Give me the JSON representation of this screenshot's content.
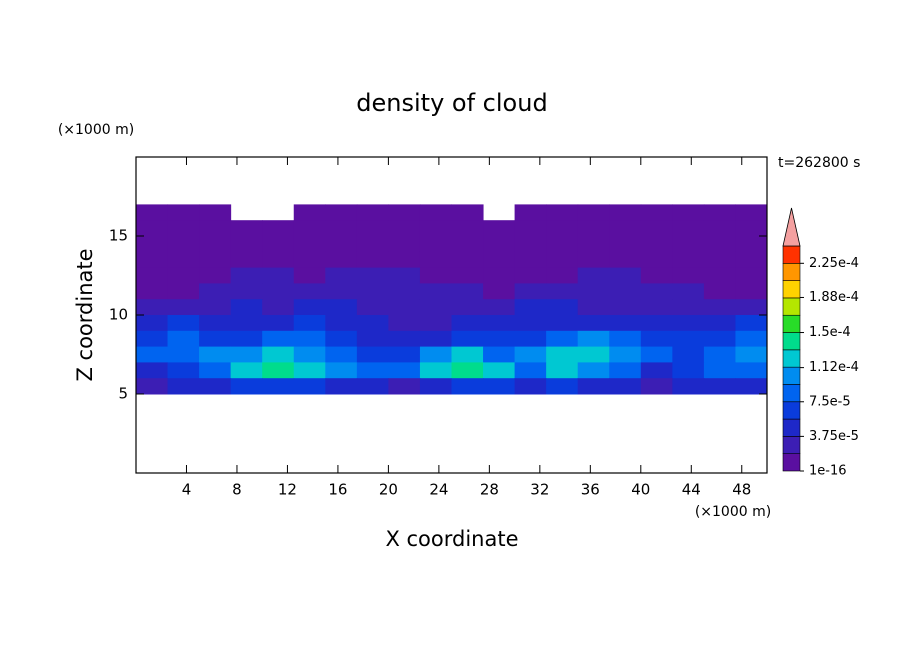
{
  "chart_data": {
    "type": "contour",
    "title": "density of cloud",
    "x_label": "X coordinate",
    "y_label": "Z coordinate",
    "x_unit": "(×1000 m)",
    "y_unit": "(×1000 m)",
    "time_label": "t=262800 s",
    "xlim": [
      0,
      50
    ],
    "ylim": [
      0,
      20
    ],
    "xticks": [
      4,
      8,
      12,
      16,
      20,
      24,
      28,
      32,
      36,
      40,
      44,
      48
    ],
    "yticks": [
      5,
      10,
      15
    ],
    "x": [
      1.25,
      3.75,
      6.25,
      8.75,
      11.25,
      13.75,
      16.25,
      18.75,
      21.25,
      23.75,
      26.25,
      28.75,
      31.25,
      33.75,
      36.25,
      38.75,
      41.25,
      43.75,
      46.25,
      48.75
    ],
    "z": [
      16.5,
      15.5,
      14.5,
      13.5,
      12.5,
      11.5,
      10.5,
      9.5,
      8.5,
      7.5,
      6.5,
      5.5
    ],
    "values": [
      [
        1e-16,
        1e-16,
        1e-16,
        null,
        null,
        1e-16,
        1e-16,
        1e-16,
        1e-16,
        1e-16,
        1e-16,
        null,
        1e-16,
        1e-16,
        1e-16,
        1e-16,
        1e-16,
        1e-16,
        1e-16,
        1e-16
      ],
      [
        1e-16,
        1e-16,
        1e-16,
        1e-16,
        1e-16,
        1e-16,
        1e-16,
        1e-16,
        1e-16,
        1e-16,
        1e-16,
        1e-16,
        1e-16,
        1e-16,
        1e-16,
        1e-16,
        1e-16,
        1e-16,
        1e-16,
        1e-16
      ],
      [
        1e-16,
        1e-16,
        1e-16,
        1e-16,
        1e-16,
        1e-16,
        1e-16,
        1e-16,
        1e-16,
        1e-16,
        1e-16,
        1e-16,
        1e-16,
        1e-16,
        1e-16,
        1e-16,
        1e-16,
        1e-16,
        1e-16,
        1e-16
      ],
      [
        1e-16,
        1e-16,
        1e-16,
        1e-16,
        1e-16,
        1e-16,
        1e-16,
        1e-16,
        1e-16,
        1e-16,
        1e-16,
        1e-16,
        1e-16,
        1e-16,
        1e-16,
        1e-16,
        1e-16,
        1e-16,
        1e-16,
        1e-16
      ],
      [
        1e-16,
        1e-16,
        1e-16,
        1.875e-05,
        1.875e-05,
        1e-16,
        1.875e-05,
        1.875e-05,
        1.875e-05,
        1e-16,
        1e-16,
        1e-16,
        1e-16,
        1e-16,
        1.875e-05,
        1.875e-05,
        1e-16,
        1e-16,
        1e-16,
        1e-16
      ],
      [
        1e-16,
        1e-16,
        1.875e-05,
        1.875e-05,
        1.875e-05,
        1.875e-05,
        1.875e-05,
        1.875e-05,
        1.875e-05,
        1.875e-05,
        1.875e-05,
        1e-16,
        1.875e-05,
        1.875e-05,
        1.875e-05,
        1.875e-05,
        1.875e-05,
        1.875e-05,
        1e-16,
        1e-16
      ],
      [
        1.875e-05,
        1.875e-05,
        1.875e-05,
        3.75e-05,
        1.875e-05,
        3.75e-05,
        3.75e-05,
        1.875e-05,
        1.875e-05,
        1.875e-05,
        1.875e-05,
        1.875e-05,
        3.75e-05,
        3.75e-05,
        1.875e-05,
        1.875e-05,
        1.875e-05,
        1.875e-05,
        1.875e-05,
        1.875e-05
      ],
      [
        3.75e-05,
        5.625e-05,
        3.75e-05,
        3.75e-05,
        3.75e-05,
        5.625e-05,
        3.75e-05,
        3.75e-05,
        1.875e-05,
        1.875e-05,
        3.75e-05,
        3.75e-05,
        3.75e-05,
        3.75e-05,
        3.75e-05,
        3.75e-05,
        3.75e-05,
        3.75e-05,
        3.75e-05,
        5.625e-05
      ],
      [
        5.625e-05,
        7.5e-05,
        5.625e-05,
        5.625e-05,
        7.5e-05,
        7.5e-05,
        5.625e-05,
        3.75e-05,
        3.75e-05,
        3.75e-05,
        5.625e-05,
        5.625e-05,
        5.625e-05,
        7.5e-05,
        9.375e-05,
        7.5e-05,
        5.625e-05,
        5.625e-05,
        5.625e-05,
        7.5e-05
      ],
      [
        7.5e-05,
        7.5e-05,
        9.375e-05,
        9.375e-05,
        0.0001125,
        9.375e-05,
        7.5e-05,
        5.625e-05,
        5.625e-05,
        9.375e-05,
        0.0001125,
        7.5e-05,
        9.375e-05,
        0.0001125,
        0.0001125,
        9.375e-05,
        7.5e-05,
        5.625e-05,
        7.5e-05,
        9.375e-05
      ],
      [
        3.75e-05,
        5.625e-05,
        7.5e-05,
        0.0001125,
        0.00013125,
        0.0001125,
        9.375e-05,
        7.5e-05,
        7.5e-05,
        0.0001125,
        0.00013125,
        0.0001125,
        7.5e-05,
        0.0001125,
        9.375e-05,
        7.5e-05,
        3.75e-05,
        5.625e-05,
        7.5e-05,
        7.5e-05
      ],
      [
        1.875e-05,
        3.75e-05,
        3.75e-05,
        5.625e-05,
        5.625e-05,
        5.625e-05,
        3.75e-05,
        3.75e-05,
        1.875e-05,
        3.75e-05,
        5.625e-05,
        5.625e-05,
        3.75e-05,
        5.625e-05,
        3.75e-05,
        3.75e-05,
        1.875e-05,
        3.75e-05,
        3.75e-05,
        3.75e-05
      ]
    ],
    "colorbar": {
      "levels": [
        1e-16,
        1.875e-05,
        3.75e-05,
        5.625e-05,
        7.5e-05,
        9.375e-05,
        0.0001125,
        0.00013125,
        0.00015,
        0.00016875,
        0.0001875,
        0.00020625,
        0.000225
      ],
      "colors": [
        "#5a0fa0",
        "#3c1eb4",
        "#1e28c8",
        "#0a3cdc",
        "#0064f0",
        "#008cf0",
        "#00c8d2",
        "#00dc8c",
        "#28dc28",
        "#b4e600",
        "#ffd200",
        "#ff9600",
        "#ff3200"
      ],
      "extend_color": "#f4a0a0",
      "lim": [
        0,
        0.00024375
      ],
      "ticks": [
        1e-16,
        {
          "value": 3.75e-05,
          "label": "3.75e-5"
        },
        {
          "value": 7.5e-05,
          "label": "7.5e-5"
        },
        {
          "value": 0.000112,
          "label": "1.12e-4"
        },
        {
          "value": 0.00015,
          "label": "1.5e-4"
        },
        {
          "value": 0.000188,
          "label": "1.88e-4"
        },
        {
          "value": 0.000225,
          "label": "2.25e-4"
        }
      ]
    }
  }
}
